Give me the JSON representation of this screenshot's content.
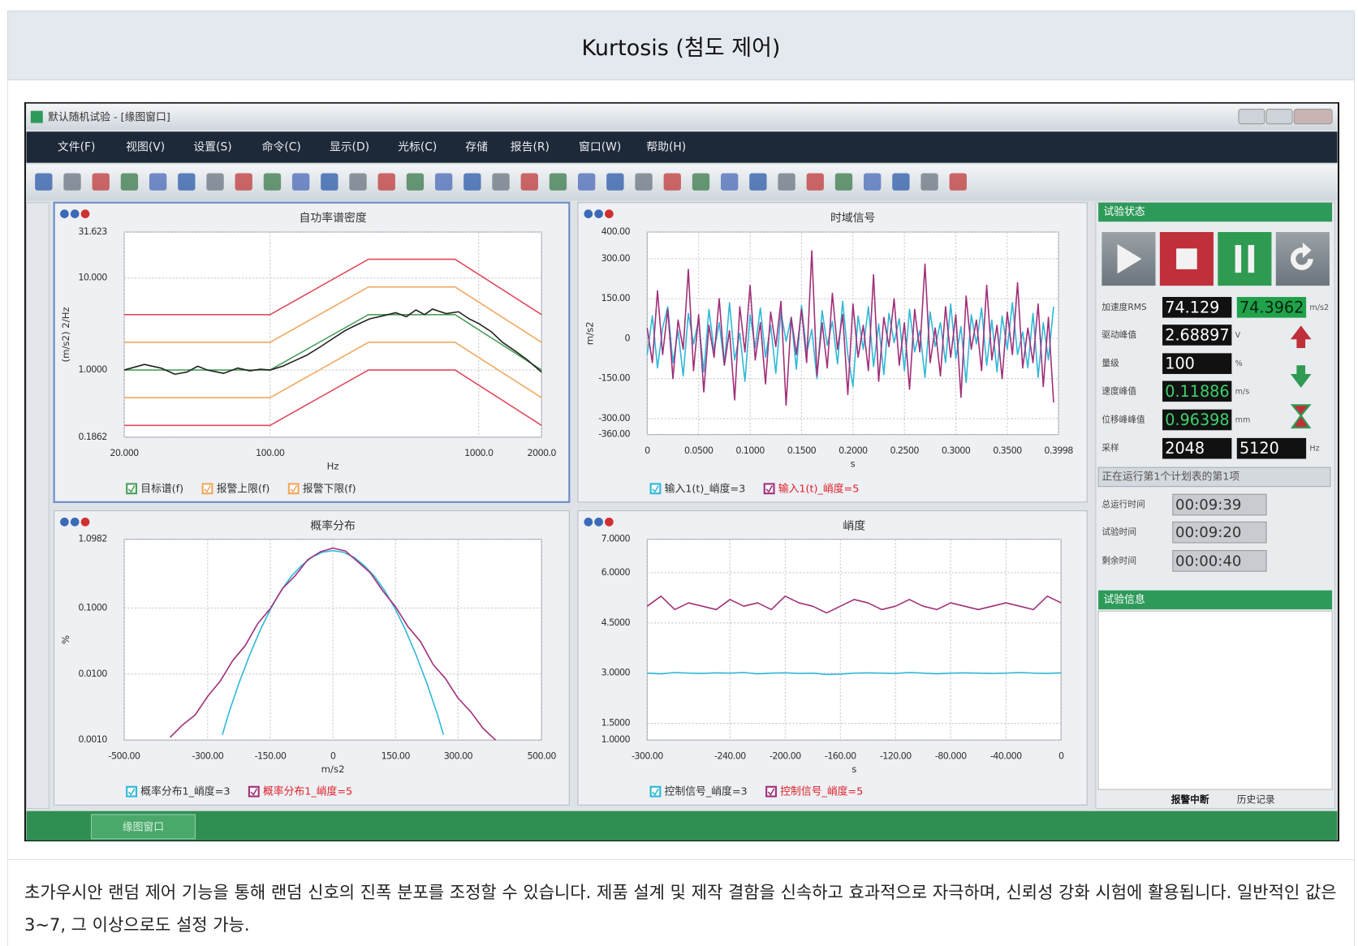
{
  "header": {
    "title": "Kurtosis (첨도 제어)"
  },
  "window": {
    "title": "默认随机试验 - [缘图窗口]",
    "menu": [
      "文件(F)",
      "视图(V)",
      "设置(S)",
      "命令(C)",
      "显示(D)",
      "光标(C)",
      "存储",
      "报告(R)",
      "窗口(W)",
      "帮助(H)"
    ],
    "tab": "缘图窗口"
  },
  "chart_data": [
    {
      "type": "line",
      "title": "自功率谱密度",
      "x_label": "Hz",
      "y_label": "(m/s2) 2/Hz",
      "xlog": true,
      "ylog": true,
      "grid": true,
      "xlim": [
        20,
        2000
      ],
      "ylim": [
        0.1862,
        31.623
      ],
      "xticks": [
        {
          "value": 20,
          "label": "20.000"
        },
        {
          "value": 100,
          "label": "100.00"
        },
        {
          "value": 1000,
          "label": "1000.0"
        },
        {
          "value": 2000,
          "label": "2000.0"
        }
      ],
      "yticks": [
        31.623,
        {
          "value": 10,
          "label": "10.000"
        },
        {
          "value": 1,
          "label": "1.0000"
        },
        0.1862
      ],
      "x": [
        20,
        100,
        296,
        770,
        2000
      ],
      "series": [
        {
          "name": "目标谱(f)",
          "color": "#4aa05a",
          "values": [
            1,
            1,
            4,
            4,
            1
          ]
        },
        {
          "name": "报警上限(f)",
          "color": "#f0a860",
          "values": [
            2,
            2,
            8,
            8,
            2
          ]
        },
        {
          "name": "报警下限(f)",
          "color": "#f0a860",
          "values": [
            0.5,
            0.5,
            2,
            2,
            0.5
          ]
        },
        {
          "color": "#e04a5a",
          "values": [
            4,
            4,
            16,
            16,
            4
          ]
        },
        {
          "color": "#e04a5a",
          "values": [
            0.25,
            0.25,
            1,
            1,
            0.25
          ]
        },
        {
          "color": "#222222",
          "x": [
            20,
            25,
            30,
            35,
            40,
            45,
            50,
            60,
            70,
            80,
            90,
            100,
            115,
            130,
            150,
            175,
            200,
            230,
            260,
            300,
            350,
            400,
            450,
            500,
            550,
            600,
            700,
            800,
            900,
            1000,
            1150,
            1300,
            1500,
            1700,
            2000
          ],
          "values": [
            1.0,
            1.15,
            1.05,
            0.9,
            0.95,
            1.1,
            1.0,
            0.92,
            1.05,
            0.98,
            1.02,
            1.0,
            1.1,
            1.25,
            1.45,
            1.8,
            2.2,
            2.7,
            3.1,
            3.6,
            3.9,
            4.2,
            3.8,
            4.5,
            4.0,
            4.6,
            4.1,
            4.3,
            3.6,
            3.2,
            2.6,
            2.0,
            1.6,
            1.3,
            0.95
          ]
        }
      ]
    },
    {
      "type": "line",
      "title": "时域信号",
      "x_label": "s",
      "y_label": "m/s2",
      "grid": true,
      "xlim": [
        0,
        0.3998
      ],
      "ylim": [
        -360,
        400
      ],
      "xticks": [
        0,
        {
          "value": 0.05,
          "label": "0.0500"
        },
        {
          "value": 0.1,
          "label": "0.1000"
        },
        {
          "value": 0.15,
          "label": "0.1500"
        },
        {
          "value": 0.2,
          "label": "0.2000"
        },
        {
          "value": 0.25,
          "label": "0.2500"
        },
        {
          "value": 0.3,
          "label": "0.3000"
        },
        {
          "value": 0.35,
          "label": "0.3500"
        },
        0.3998
      ],
      "yticks": [
        {
          "value": 400,
          "label": "400.00"
        },
        {
          "value": 300,
          "label": "300.00"
        },
        {
          "value": 150,
          "label": "150.00"
        },
        0,
        {
          "value": -150,
          "label": "-150.00"
        },
        {
          "value": -300,
          "label": "-300.00"
        },
        {
          "value": -360,
          "label": "-360.00"
        }
      ],
      "x": [
        0,
        0.005,
        0.01,
        0.015,
        0.02,
        0.025,
        0.03,
        0.035,
        0.04,
        0.045,
        0.05,
        0.055,
        0.06,
        0.065,
        0.07,
        0.075,
        0.08,
        0.085,
        0.09,
        0.095,
        0.1,
        0.105,
        0.11,
        0.115,
        0.12,
        0.125,
        0.13,
        0.135,
        0.14,
        0.145,
        0.15,
        0.155,
        0.16,
        0.165,
        0.17,
        0.175,
        0.18,
        0.185,
        0.19,
        0.195,
        0.2,
        0.205,
        0.21,
        0.215,
        0.22,
        0.225,
        0.23,
        0.235,
        0.24,
        0.245,
        0.25,
        0.255,
        0.26,
        0.265,
        0.27,
        0.275,
        0.28,
        0.285,
        0.29,
        0.295,
        0.3,
        0.305,
        0.31,
        0.315,
        0.32,
        0.325,
        0.33,
        0.335,
        0.34,
        0.345,
        0.35,
        0.355,
        0.36,
        0.365,
        0.37,
        0.375,
        0.38,
        0.385,
        0.39,
        0.395
      ],
      "series": [
        {
          "name": "输入1(t)_峭度=3",
          "color": "#30b8d8",
          "values": [
            -60,
            85,
            -110,
            40,
            120,
            -90,
            30,
            -140,
            95,
            -20,
            70,
            -125,
            110,
            -45,
            60,
            -100,
            135,
            -80,
            20,
            -160,
            90,
            -35,
            115,
            -70,
            50,
            -130,
            100,
            -10,
            80,
            -115,
            125,
            -55,
            35,
            -150,
            105,
            -25,
            65,
            -95,
            140,
            -60,
            -180,
            85,
            -40,
            120,
            -105,
            55,
            -135,
            95,
            -15,
            75,
            -120,
            110,
            -50,
            30,
            -145,
            100,
            -30,
            60,
            -90,
            130,
            -75,
            45,
            -165,
            90,
            -20,
            115,
            -100,
            70,
            -125,
            85,
            -40,
            135,
            -60,
            25,
            -110,
            95,
            -145,
            60,
            -80,
            120
          ]
        },
        {
          "name": "输入1(t)_峭度=5",
          "color": "#a0307a",
          "values": [
            40,
            -90,
            180,
            -60,
            110,
            -150,
            70,
            -40,
            260,
            -120,
            90,
            -200,
            50,
            -70,
            150,
            -100,
            30,
            -230,
            120,
            -50,
            200,
            -80,
            60,
            -170,
            100,
            -30,
            140,
            -250,
            80,
            -60,
            110,
            -90,
            330,
            -140,
            60,
            -110,
            170,
            -40,
            90,
            -210,
            130,
            -70,
            50,
            -120,
            240,
            -160,
            80,
            -30,
            150,
            -100,
            60,
            -190,
            110,
            -50,
            280,
            -90,
            40,
            -140,
            120,
            -70,
            90,
            -220,
            160,
            -40,
            70,
            -120,
            200,
            -80,
            50,
            -150,
            100,
            -60,
            210,
            -110,
            40,
            -90,
            130,
            -180,
            80,
            -240
          ]
        }
      ]
    },
    {
      "type": "line",
      "title": "概率分布",
      "x_label": "m/s2",
      "y_label": "%",
      "ylog": true,
      "grid": true,
      "xlim": [
        -500,
        500
      ],
      "ylim": [
        0.001,
        1.0982
      ],
      "xticks": [
        {
          "value": -500,
          "label": "-500.00"
        },
        {
          "value": -300,
          "label": "-300.00"
        },
        {
          "value": -150,
          "label": "-150.00"
        },
        0,
        {
          "value": 150,
          "label": "150.00"
        },
        {
          "value": 300,
          "label": "300.00"
        },
        {
          "value": 500,
          "label": "500.00"
        }
      ],
      "yticks": [
        1.0982,
        {
          "value": 0.1,
          "label": "0.1000"
        },
        {
          "value": 0.01,
          "label": "0.0100"
        },
        {
          "value": 0.001,
          "label": "0.0010"
        }
      ],
      "series": [
        {
          "name": "概率分布1_峭度=3",
          "color": "#30b8d8",
          "x": [
            -265,
            -250,
            -225,
            -200,
            -175,
            -150,
            -125,
            -100,
            -75,
            -50,
            -25,
            0,
            25,
            50,
            75,
            100,
            125,
            150,
            175,
            200,
            225,
            250,
            265
          ],
          "values": [
            0.0012,
            0.0025,
            0.0073,
            0.019,
            0.045,
            0.095,
            0.18,
            0.3,
            0.44,
            0.59,
            0.7,
            0.74,
            0.7,
            0.59,
            0.44,
            0.3,
            0.18,
            0.095,
            0.045,
            0.019,
            0.0073,
            0.0025,
            0.0012
          ]
        },
        {
          "name": "概率分布1_峭度=5",
          "color": "#a0307a",
          "x": [
            -390,
            -360,
            -330,
            -300,
            -270,
            -240,
            -210,
            -180,
            -150,
            -120,
            -90,
            -60,
            -30,
            0,
            30,
            60,
            90,
            120,
            150,
            180,
            210,
            240,
            270,
            300,
            330,
            360,
            390
          ],
          "values": [
            0.0011,
            0.0017,
            0.0024,
            0.0046,
            0.0078,
            0.016,
            0.027,
            0.058,
            0.098,
            0.2,
            0.31,
            0.54,
            0.71,
            0.81,
            0.73,
            0.5,
            0.34,
            0.18,
            0.105,
            0.052,
            0.031,
            0.014,
            0.0085,
            0.0043,
            0.0027,
            0.0015,
            0.001
          ]
        }
      ]
    },
    {
      "type": "line",
      "title": "峭度",
      "x_label": "s",
      "grid": true,
      "xlim": [
        -300,
        0
      ],
      "ylim": [
        1,
        7
      ],
      "xticks": [
        {
          "value": -300,
          "label": "-300.00"
        },
        {
          "value": -240,
          "label": "-240.00"
        },
        {
          "value": -200,
          "label": "-200.00"
        },
        {
          "value": -160,
          "label": "-160.00"
        },
        {
          "value": -120,
          "label": "-120.00"
        },
        {
          "value": -80,
          "label": "-80.000"
        },
        {
          "value": -40,
          "label": "-40.000"
        },
        0
      ],
      "yticks": [
        {
          "value": 7,
          "label": "7.0000"
        },
        {
          "value": 6,
          "label": "6.0000"
        },
        {
          "value": 4.5,
          "label": "4.5000"
        },
        {
          "value": 3,
          "label": "3.0000"
        },
        {
          "value": 1.5,
          "label": "1.5000"
        },
        {
          "value": 1,
          "label": "1.0000"
        }
      ],
      "x": [
        -300,
        -290,
        -280,
        -270,
        -260,
        -250,
        -240,
        -230,
        -220,
        -210,
        -200,
        -190,
        -180,
        -170,
        -160,
        -150,
        -140,
        -130,
        -120,
        -110,
        -100,
        -90,
        -80,
        -70,
        -60,
        -50,
        -40,
        -30,
        -20,
        -10,
        0
      ],
      "series": [
        {
          "name": "控制信号_峭度=3",
          "color": "#30b8d8",
          "values": [
            3.0,
            2.98,
            3.02,
            3.0,
            2.99,
            3.01,
            3.0,
            3.02,
            2.98,
            3.0,
            3.01,
            2.99,
            3.0,
            2.96,
            2.97,
            3.0,
            3.01,
            3.0,
            2.99,
            3.02,
            3.0,
            2.98,
            3.0,
            3.01,
            3.0,
            2.99,
            3.0,
            3.02,
            3.0,
            2.99,
            3.01
          ]
        },
        {
          "name": "控制信号_峭度=5",
          "color": "#a0307a",
          "values": [
            5.0,
            5.3,
            4.9,
            5.1,
            5.0,
            4.9,
            5.2,
            5.0,
            5.1,
            4.9,
            5.3,
            5.1,
            5.0,
            4.8,
            5.0,
            5.2,
            5.1,
            4.9,
            5.0,
            5.2,
            5.0,
            4.9,
            5.1,
            5.0,
            4.9,
            5.0,
            5.1,
            5.0,
            4.9,
            5.3,
            5.1
          ]
        }
      ]
    }
  ],
  "status_panel": {
    "title": "试验状态",
    "rows": [
      {
        "label": "加速度RMS",
        "values": [
          74.129,
          74.3962
        ],
        "unit": "m/s2"
      },
      {
        "label": "驱动峰值",
        "values": [
          2.68897
        ],
        "unit": "V"
      },
      {
        "label": "量级",
        "values": [
          100
        ],
        "unit": "%"
      },
      {
        "label": "速度峰值",
        "values": [
          0.11886
        ],
        "unit": "m/s"
      },
      {
        "label": "位移峰峰值",
        "values": [
          0.96398
        ],
        "unit": "mm"
      },
      {
        "label": "采样",
        "values": [
          2048,
          5120
        ],
        "unit": "Hz"
      }
    ],
    "message": "正在运行第1个计划表的第1项",
    "times": [
      {
        "label": "总运行时间",
        "value": "00:09:39"
      },
      {
        "label": "试验时间",
        "value": "00:09:20"
      },
      {
        "label": "剩余时间",
        "value": "00:00:40"
      }
    ]
  },
  "info_panel": {
    "title": "试验信息",
    "tabs": [
      "报警中断",
      "历史记录"
    ]
  },
  "description": "초가우시안 랜덤 제어 기능을 통해 랜덤 신호의 진폭 분포를 조정할 수 있습니다. 제품 설계 및 제작 결함을 신속하고 효과적으로 자극하며, 신뢰성 강화 시험에 활용됩니다. 일반적인 값은 3~7, 그 이상으로도 설정 가능."
}
